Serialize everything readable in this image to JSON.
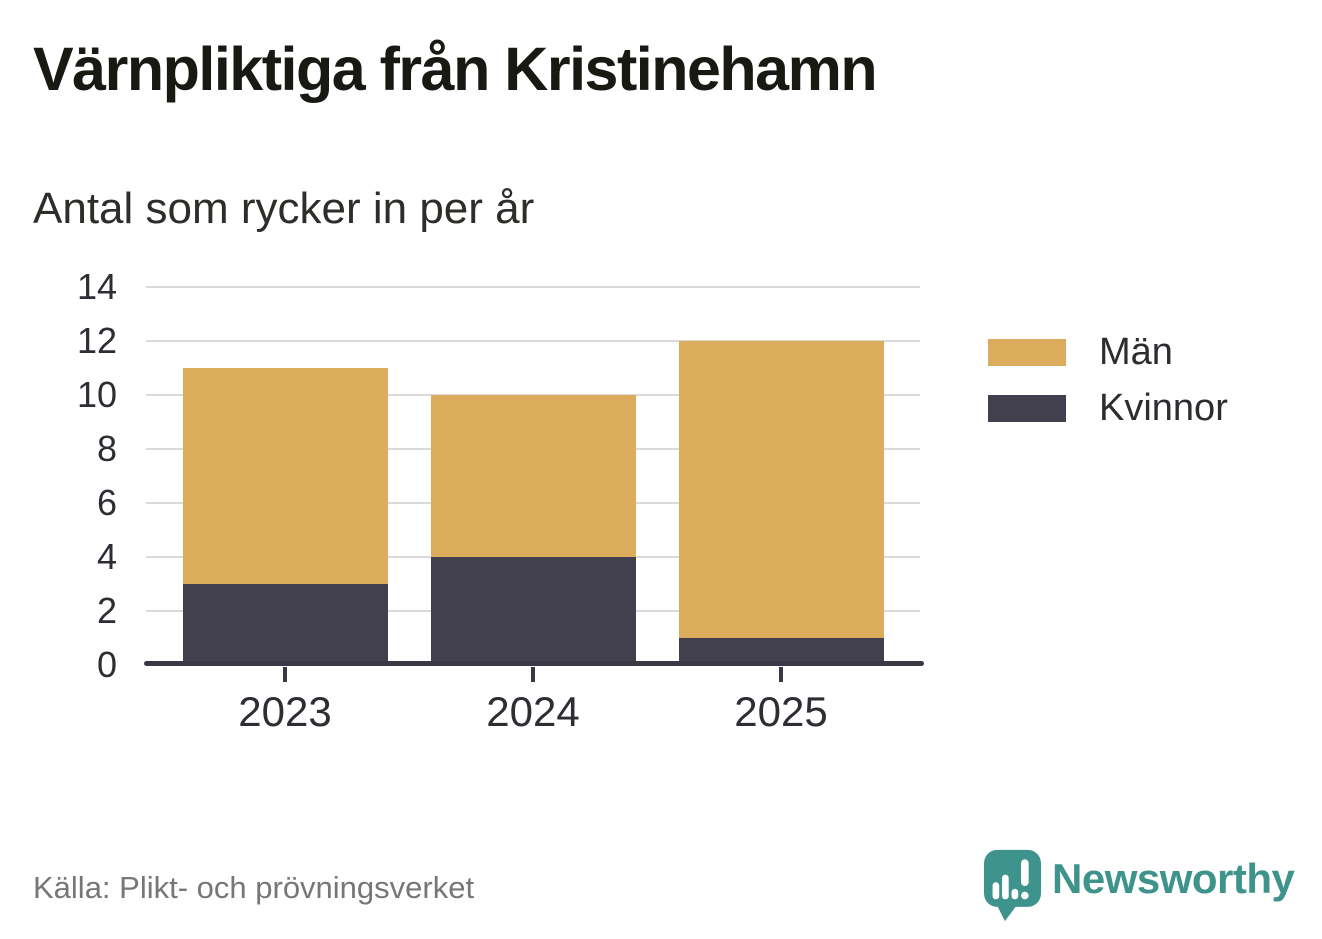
{
  "header": {
    "title": "Värnpliktiga från Kristinehamn",
    "subtitle": "Antal som rycker in per år"
  },
  "footer": {
    "source": "Källa: Plikt- och prövningsverket",
    "brand_name": "Newsworthy"
  },
  "colors": {
    "men": "#DBAC5C",
    "women": "#423F4E",
    "gridline": "#DADADA",
    "axis": "#3A3845",
    "text": "#2E2D33",
    "muted_text": "#777777",
    "brand_teal": "#3E948C",
    "background": "#FFFFFF"
  },
  "icons": {
    "brand_icon": "newsworthy-speech-bubble-bar-chart-exclamation-icon"
  },
  "legend": [
    {
      "label": "Män",
      "color": "#DBAC5C"
    },
    {
      "label": "Kvinnor",
      "color": "#423F4E"
    }
  ],
  "chart_data": {
    "type": "bar",
    "stacked": true,
    "title": "Värnpliktiga från Kristinehamn",
    "subtitle": "Antal som rycker in per år",
    "categories": [
      "2023",
      "2024",
      "2025"
    ],
    "series": [
      {
        "name": "Kvinnor",
        "color": "#423F4E",
        "values": [
          3,
          4,
          1
        ]
      },
      {
        "name": "Män",
        "color": "#DBAC5C",
        "values": [
          8,
          6,
          11
        ]
      }
    ],
    "totals": [
      11,
      10,
      12
    ],
    "xlabel": "",
    "ylabel": "",
    "ylim": [
      0,
      14
    ],
    "yticks": [
      0,
      2,
      4,
      6,
      8,
      10,
      12,
      14
    ],
    "grid": true,
    "legend_position": "right",
    "source": "Källa: Plikt- och prövningsverket"
  }
}
